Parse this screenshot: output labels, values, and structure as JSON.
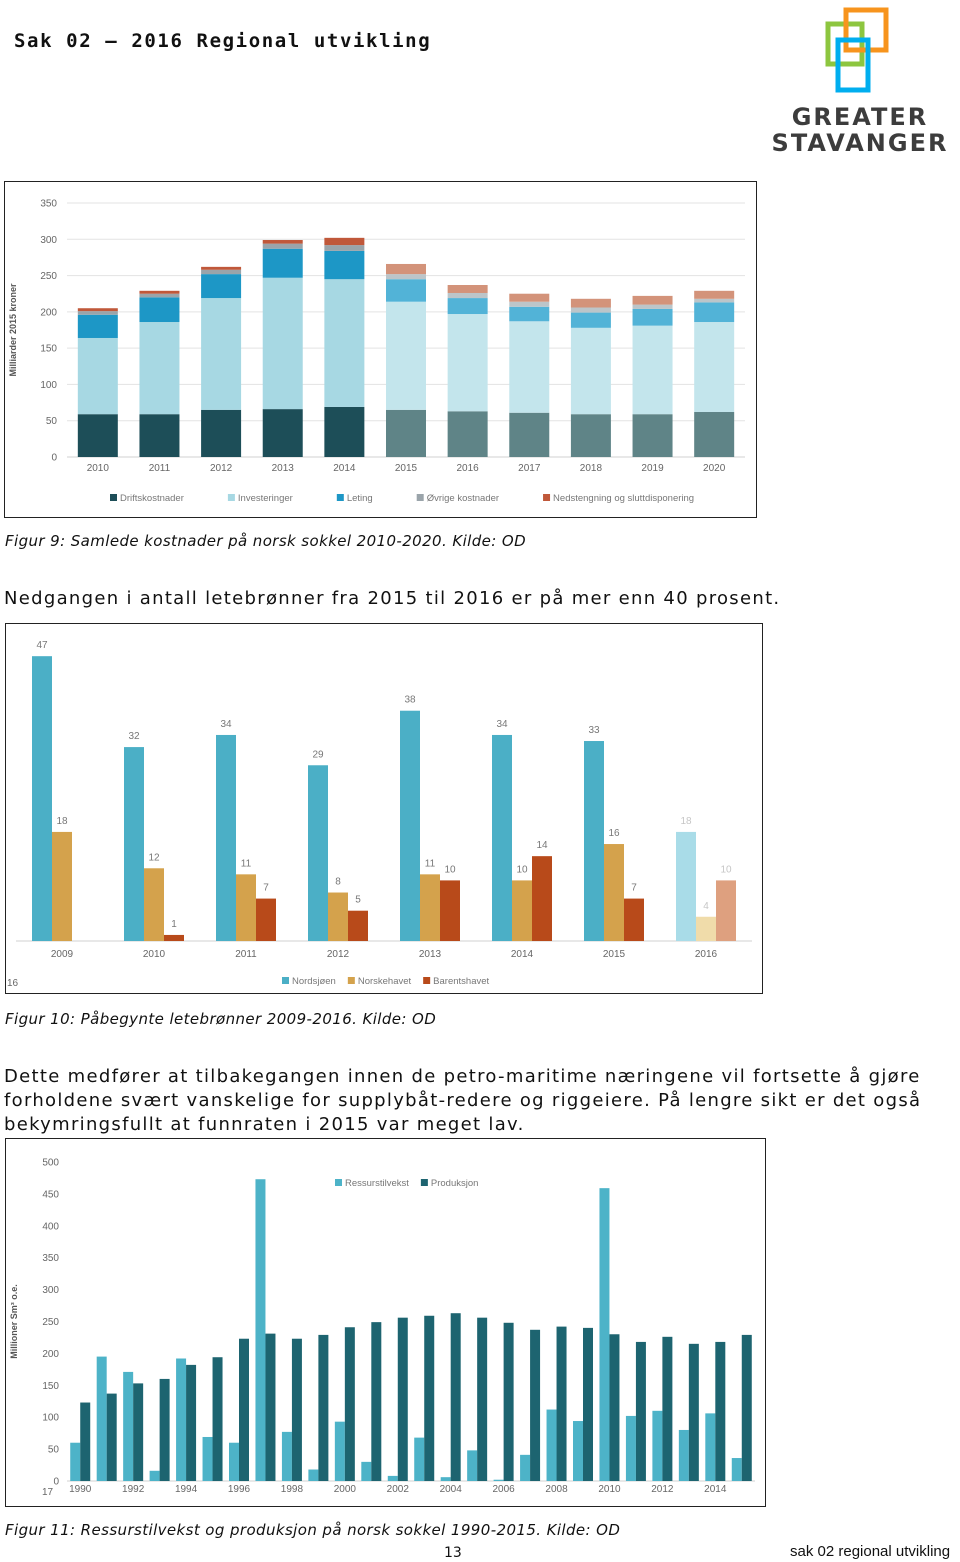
{
  "header": {
    "title": "Sak 02 – 2016 Regional utvikling",
    "logo": [
      "GREATER",
      "STAVANGER"
    ]
  },
  "chart_data": [
    {
      "type": "bar",
      "stacking": "stacked",
      "ylabel": "Milliarder 2015 kroner",
      "categories": [
        "2010",
        "2011",
        "2012",
        "2013",
        "2014",
        "2015",
        "2016",
        "2017",
        "2018",
        "2019",
        "2020"
      ],
      "ylim": [
        0,
        350
      ],
      "yticks": [
        0,
        50,
        100,
        150,
        200,
        250,
        300,
        350
      ],
      "grid": true,
      "legend": "bottom",
      "series": [
        {
          "name": "Driftskostnader",
          "color": "#1d4e58",
          "colors": [
            "#1d4e58",
            "#1d4e58",
            "#1d4e58",
            "#1d4e58",
            "#1d4e58",
            "#5f8487",
            "#5f8487",
            "#5f8487",
            "#5f8487",
            "#5f8487",
            "#5f8487"
          ],
          "values": [
            59,
            59,
            65,
            66,
            69,
            65,
            63,
            61,
            59,
            59,
            62
          ]
        },
        {
          "name": "Investeringer",
          "color": "#a7d8e3",
          "colors": [
            "#a7d8e3",
            "#a7d8e3",
            "#a7d8e3",
            "#a7d8e3",
            "#a7d8e3",
            "#c3e5ec",
            "#c3e5ec",
            "#c3e5ec",
            "#c3e5ec",
            "#c3e5ec",
            "#c3e5ec"
          ],
          "values": [
            105,
            127,
            154,
            181,
            176,
            149,
            134,
            126,
            119,
            122,
            124
          ]
        },
        {
          "name": "Leting",
          "color": "#1d97c6",
          "colors": [
            "#1d97c6",
            "#1d97c6",
            "#1d97c6",
            "#1d97c6",
            "#1d97c6",
            "#52b3d7",
            "#52b3d7",
            "#52b3d7",
            "#52b3d7",
            "#52b3d7",
            "#52b3d7"
          ],
          "values": [
            32,
            34,
            33,
            40,
            39,
            31,
            22,
            20,
            21,
            23,
            27
          ]
        },
        {
          "name": "Øvrige kostnader",
          "color": "#9aa4aa",
          "colors": [
            "#9aa4aa",
            "#9aa4aa",
            "#9aa4aa",
            "#9aa4aa",
            "#9aa4aa",
            "#bcc5c9",
            "#bcc5c9",
            "#bcc5c9",
            "#bcc5c9",
            "#bcc5c9",
            "#bcc5c9"
          ],
          "values": [
            5,
            5,
            6,
            7,
            8,
            7,
            7,
            7,
            7,
            6,
            5
          ]
        },
        {
          "name": "Nedstengning og sluttdisponering",
          "color": "#c0583a",
          "colors": [
            "#c0583a",
            "#c0583a",
            "#c0583a",
            "#c0583a",
            "#c0583a",
            "#d3937a",
            "#d3937a",
            "#d3937a",
            "#d3937a",
            "#d3937a",
            "#d3937a"
          ],
          "values": [
            4,
            4,
            4,
            5,
            10,
            14,
            11,
            11,
            12,
            12,
            11
          ]
        }
      ]
    },
    {
      "type": "bar",
      "stacking": "grouped",
      "data_labels": true,
      "corner_note": "16",
      "categories": [
        "2009",
        "2010",
        "2011",
        "2012",
        "2013",
        "2014",
        "2015",
        "2016"
      ],
      "ylim": [
        0,
        50
      ],
      "legend": "bottom",
      "series": [
        {
          "name": "Nordsjøen",
          "color": "#4bafc6",
          "colors": [
            "#4bafc6",
            "#4bafc6",
            "#4bafc6",
            "#4bafc6",
            "#4bafc6",
            "#4bafc6",
            "#4bafc6",
            "#a9dce8"
          ],
          "values": [
            47,
            32,
            34,
            29,
            38,
            34,
            33,
            18
          ]
        },
        {
          "name": "Norskehavet",
          "color": "#d4a24c",
          "colors": [
            "#d4a24c",
            "#d4a24c",
            "#d4a24c",
            "#d4a24c",
            "#d4a24c",
            "#d4a24c",
            "#d4a24c",
            "#f0dcaa"
          ],
          "values": [
            18,
            12,
            11,
            8,
            11,
            10,
            16,
            4
          ]
        },
        {
          "name": "Barentshavet",
          "color": "#b84a1a",
          "colors": [
            "#b84a1a",
            "#b84a1a",
            "#b84a1a",
            "#b84a1a",
            "#b84a1a",
            "#b84a1a",
            "#b84a1a",
            "#dea07f"
          ],
          "values": [
            null,
            1,
            7,
            5,
            10,
            14,
            7,
            10
          ]
        }
      ]
    },
    {
      "type": "bar",
      "stacking": "grouped",
      "ylabel": "Millioner Sm³ o.e.",
      "corner_note": "17",
      "categories": [
        "1990",
        null,
        "1992",
        null,
        "1994",
        null,
        "1996",
        null,
        "1998",
        null,
        "2000",
        null,
        "2002",
        null,
        "2004",
        null,
        "2006",
        null,
        "2008",
        null,
        "2010",
        null,
        "2012",
        null,
        "2014",
        null
      ],
      "ylim": [
        0,
        500
      ],
      "yticks": [
        0,
        50,
        100,
        150,
        200,
        250,
        300,
        350,
        400,
        450,
        500
      ],
      "grid": false,
      "legend": "top",
      "series": [
        {
          "name": "Ressurstilvekst",
          "color": "#4db3c8",
          "values": [
            60,
            195,
            171,
            16,
            192,
            69,
            60,
            473,
            77,
            18,
            93,
            30,
            8,
            68,
            6,
            48,
            2,
            41,
            112,
            94,
            459,
            102,
            110,
            80,
            106,
            36
          ]
        },
        {
          "name": "Produksjon",
          "color": "#1d6470",
          "values": [
            123,
            137,
            153,
            160,
            182,
            194,
            223,
            231,
            223,
            229,
            241,
            249,
            256,
            259,
            263,
            256,
            248,
            237,
            242,
            240,
            230,
            218,
            226,
            215,
            218,
            229
          ]
        }
      ]
    }
  ],
  "captions": [
    "Figur 9: Samlede kostnader på norsk sokkel 2010-2020. Kilde: OD",
    "Figur 10: Påbegynte letebrønner 2009-2016. Kilde: OD",
    "Figur 11: Ressurstilvekst og produksjon på norsk sokkel 1990-2015. Kilde: OD"
  ],
  "paragraphs": [
    "Nedgangen i antall letebrønner fra 2015 til 2016 er på mer enn 40 prosent.",
    "Dette medfører at tilbakegangen innen de petro-maritime næringene vil fortsette å gjøre forholdene svært vanskelige for supplybåt-redere og riggeiere. På lengre sikt er det også bekymringsfullt at funnraten i 2015 var meget lav."
  ],
  "footer": {
    "page": "13",
    "label": "sak 02 regional utvikling"
  }
}
